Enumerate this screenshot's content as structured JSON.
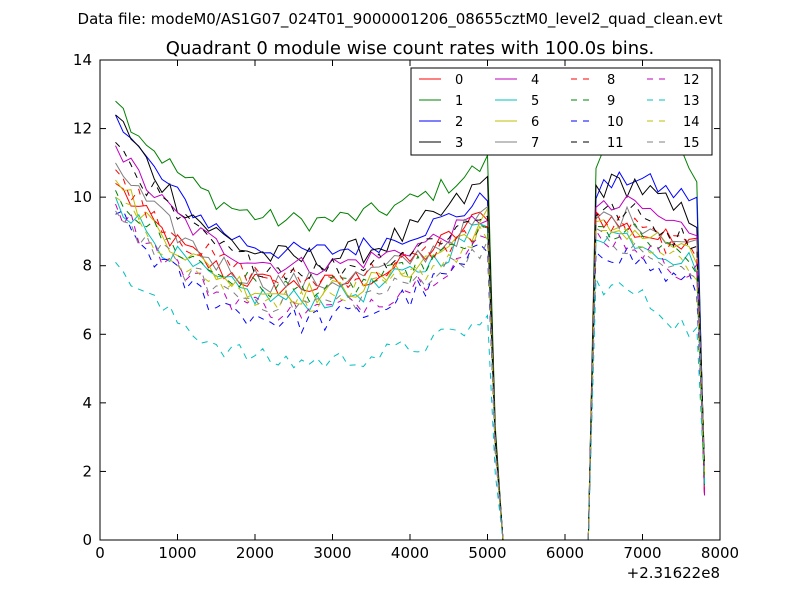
{
  "suptitle": "Data file: modeM0/AS1G07_024T01_9000001206_08655cztM0_level2_quad_clean.evt",
  "chart_data": {
    "type": "line",
    "title": "Quadrant 0 module wise count rates with 100.0s bins.",
    "xlabel": "",
    "ylabel": "",
    "xlim": [
      0,
      8000
    ],
    "ylim": [
      0,
      14
    ],
    "x_offset_label": "+2.31622e8",
    "xticks": [
      0,
      1000,
      2000,
      3000,
      4000,
      5000,
      6000,
      7000,
      8000
    ],
    "yticks": [
      0,
      2,
      4,
      6,
      8,
      10,
      12,
      14
    ],
    "grid": false,
    "legend_position": "top-right",
    "segments": [
      {
        "x_start": 200,
        "x_end": 5000
      },
      {
        "x_start": 6300,
        "x_end": 7800
      }
    ],
    "gap": {
      "x": [
        5100,
        5200,
        6200,
        6300
      ],
      "y": [
        3.0,
        0,
        0,
        0
      ]
    },
    "series": [
      {
        "name": "0",
        "color": "#ff0000",
        "dash": "solid",
        "start": 10.4,
        "mid": 7.4,
        "end": 9.6,
        "seg2": [
          9.5,
          9.0,
          8.7,
          9.3
        ],
        "noise": 0.35
      },
      {
        "name": "1",
        "color": "#008000",
        "dash": "solid",
        "start": 12.8,
        "mid": 9.3,
        "end": 11.0,
        "seg2": [
          11.0,
          12.1,
          11.4,
          10.3
        ],
        "noise": 0.3
      },
      {
        "name": "2",
        "color": "#0000ff",
        "dash": "solid",
        "start": 12.4,
        "mid": 8.4,
        "end": 10.0,
        "seg2": [
          10.2,
          10.6,
          10.1,
          9.9
        ],
        "noise": 0.3
      },
      {
        "name": "3",
        "color": "#000000",
        "dash": "solid",
        "start": 12.4,
        "mid": 8.2,
        "end": 10.5,
        "seg2": [
          10.3,
          10.4,
          9.6,
          9.3
        ],
        "noise": 0.4
      },
      {
        "name": "4",
        "color": "#bf00bf",
        "dash": "solid",
        "start": 11.5,
        "mid": 8.0,
        "end": 9.5,
        "seg2": [
          9.6,
          9.8,
          9.2,
          8.9
        ],
        "noise": 0.3
      },
      {
        "name": "5",
        "color": "#00bfbf",
        "dash": "solid",
        "start": 10.0,
        "mid": 7.0,
        "end": 9.3,
        "seg2": [
          9.0,
          8.8,
          8.3,
          7.9
        ],
        "noise": 0.35
      },
      {
        "name": "6",
        "color": "#bfbf00",
        "dash": "solid",
        "start": 10.5,
        "mid": 7.2,
        "end": 9.4,
        "seg2": [
          9.1,
          9.0,
          8.6,
          7.7
        ],
        "noise": 0.35
      },
      {
        "name": "7",
        "color": "#808080",
        "dash": "solid",
        "start": 11.0,
        "mid": 7.5,
        "end": 9.5,
        "seg2": [
          9.4,
          9.4,
          8.8,
          8.4
        ],
        "noise": 0.35
      },
      {
        "name": "8",
        "color": "#ff0000",
        "dash": "dashed",
        "start": 10.8,
        "mid": 7.6,
        "end": 9.2,
        "seg2": [
          9.3,
          9.1,
          8.6,
          8.2
        ],
        "noise": 0.35
      },
      {
        "name": "9",
        "color": "#008000",
        "dash": "dashed",
        "start": 10.2,
        "mid": 7.3,
        "end": 9.0,
        "seg2": [
          9.0,
          8.9,
          8.3,
          7.8
        ],
        "noise": 0.35
      },
      {
        "name": "10",
        "color": "#0000ff",
        "dash": "dashed",
        "start": 9.5,
        "mid": 6.4,
        "end": 8.5,
        "seg2": [
          8.6,
          8.2,
          7.6,
          7.2
        ],
        "noise": 0.4
      },
      {
        "name": "11",
        "color": "#000000",
        "dash": "dashed",
        "start": 11.6,
        "mid": 7.9,
        "end": 9.6,
        "seg2": [
          9.6,
          9.5,
          8.9,
          8.6
        ],
        "noise": 0.35
      },
      {
        "name": "12",
        "color": "#bf00bf",
        "dash": "dashed",
        "start": 9.8,
        "mid": 6.7,
        "end": 8.8,
        "seg2": [
          8.9,
          8.6,
          8.0,
          7.6
        ],
        "noise": 0.35
      },
      {
        "name": "13",
        "color": "#00bfbf",
        "dash": "dashed",
        "start": 8.1,
        "mid": 5.2,
        "end": 6.4,
        "seg2": [
          7.5,
          7.2,
          6.4,
          5.8
        ],
        "noise": 0.3
      },
      {
        "name": "14",
        "color": "#bfbf00",
        "dash": "dashed",
        "start": 10.0,
        "mid": 7.0,
        "end": 9.0,
        "seg2": [
          9.0,
          8.7,
          8.1,
          7.6
        ],
        "noise": 0.35
      },
      {
        "name": "15",
        "color": "#808080",
        "dash": "dashed",
        "start": 9.6,
        "mid": 6.9,
        "end": 8.7,
        "seg2": [
          8.8,
          8.4,
          7.9,
          7.4
        ],
        "noise": 0.35
      }
    ]
  }
}
